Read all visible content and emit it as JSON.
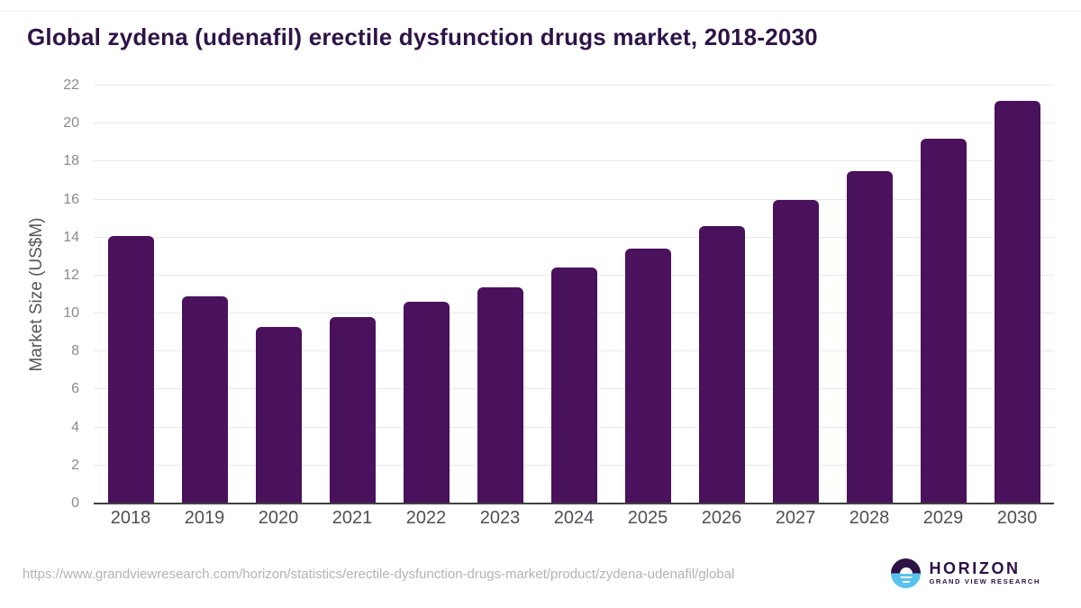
{
  "page": {
    "source_url": "https://www.grandviewresearch.com/horizon/statistics/erectile-dysfunction-drugs-market/product/zydena-udenafil/global",
    "logo": {
      "name": "HORIZON",
      "subtitle": "GRAND VIEW RESEARCH"
    }
  },
  "colors": {
    "bar": "#4a115c",
    "title": "#2d1446",
    "gridline": "#e8e8ea",
    "axis_line": "#414042",
    "tick_label": "#8b8b8e",
    "x_label": "#4f5055",
    "axis_title": "#565659",
    "url": "#b3b3b5",
    "logo_purple": "#2d1245",
    "logo_blue": "#5ac2ee"
  },
  "chart_data": {
    "type": "bar",
    "title": "Global zydena (udenafil) erectile dysfunction drugs market, 2018-2030",
    "categories": [
      "2018",
      "2019",
      "2020",
      "2021",
      "2022",
      "2023",
      "2024",
      "2025",
      "2026",
      "2027",
      "2028",
      "2029",
      "2030"
    ],
    "values": [
      14.1,
      10.9,
      9.3,
      9.8,
      10.6,
      11.4,
      12.4,
      13.4,
      14.6,
      16.0,
      17.5,
      19.2,
      21.2
    ],
    "xlabel": "",
    "ylabel": "Market Size (US$M)",
    "ylim": [
      0,
      22
    ],
    "ytick_step": 2,
    "grid": true,
    "legend_position": "none",
    "bar_color": "#4a115c"
  }
}
